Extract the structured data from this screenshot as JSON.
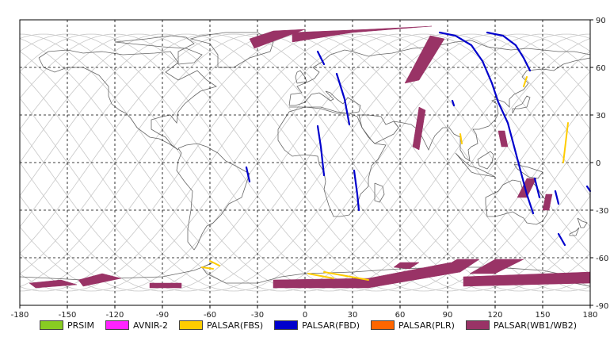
{
  "chart_data": {
    "type": "map",
    "projection": "equirectangular",
    "xlim": [
      -180,
      180
    ],
    "ylim": [
      -90,
      90
    ],
    "x_ticks": [
      -180,
      -150,
      -120,
      -90,
      -60,
      -30,
      0,
      30,
      60,
      90,
      120,
      150,
      180
    ],
    "y_ticks": [
      90,
      60,
      30,
      0,
      -30,
      -60,
      -90
    ],
    "grid": true,
    "legend_position": "bottom",
    "colors": {
      "coastline": "#666666",
      "ground_track": "#c8c8c8",
      "grid": "#000000"
    },
    "legend": [
      {
        "label": "PRSIM",
        "color": "#88cc22"
      },
      {
        "label": "AVNIR-2",
        "color": "#ff22ff"
      },
      {
        "label": "PALSAR(FBS)",
        "color": "#ffcc00"
      },
      {
        "label": "PALSAR(FBD)",
        "color": "#0000cc"
      },
      {
        "label": "PALSAR(PLR)",
        "color": "#ff6600"
      },
      {
        "label": "PALSAR(WB1/WB2)",
        "color": "#993366"
      }
    ],
    "series": [
      {
        "name": "PALSAR(WB1/WB2)",
        "color": "#993366",
        "swaths": [
          [
            [
              -143,
              -74
            ],
            [
              -128,
              -70
            ],
            [
              -116,
              -73
            ],
            [
              -140,
              -78
            ]
          ],
          [
            [
              -174,
              -76
            ],
            [
              -154,
              -74
            ],
            [
              -144,
              -77
            ],
            [
              -170,
              -79
            ]
          ],
          [
            [
              -98,
              -76
            ],
            [
              -78,
              -76
            ],
            [
              -78,
              -79
            ],
            [
              -98,
              -79
            ]
          ],
          [
            [
              -35,
              78
            ],
            [
              -20,
              83
            ],
            [
              0,
              84
            ],
            [
              -32,
              72
            ]
          ],
          [
            [
              -8,
              82
            ],
            [
              40,
              84
            ],
            [
              80,
              86
            ],
            [
              30,
              82
            ],
            [
              -8,
              76
            ]
          ],
          [
            [
              79,
              80
            ],
            [
              88,
              78
            ],
            [
              72,
              52
            ],
            [
              63,
              50
            ]
          ],
          [
            [
              76,
              33
            ],
            [
              72,
              35
            ],
            [
              68,
              10
            ],
            [
              72,
              8
            ]
          ],
          [
            [
              60,
              -63
            ],
            [
              72,
              -63
            ],
            [
              66,
              -67
            ],
            [
              56,
              -66
            ]
          ],
          [
            [
              96,
              -61
            ],
            [
              110,
              -61
            ],
            [
              98,
              -69
            ],
            [
              82,
              -69
            ]
          ],
          [
            [
              120,
              -61
            ],
            [
              138,
              -61
            ],
            [
              120,
              -70
            ],
            [
              104,
              -70
            ]
          ],
          [
            [
              -20,
              -74
            ],
            [
              40,
              -73
            ],
            [
              92,
              -63
            ],
            [
              98,
              -69
            ],
            [
              40,
              -79
            ],
            [
              -20,
              -79
            ]
          ],
          [
            [
              100,
              -72
            ],
            [
              180,
              -69
            ],
            [
              180,
              -76
            ],
            [
              100,
              -78
            ]
          ],
          [
            [
              122,
              20
            ],
            [
              126,
              20
            ],
            [
              128,
              10
            ],
            [
              124,
              10
            ]
          ],
          [
            [
              140,
              -10
            ],
            [
              146,
              -10
            ],
            [
              140,
              -22
            ],
            [
              134,
              -22
            ]
          ],
          [
            [
              152,
              -20
            ],
            [
              156,
              -20
            ],
            [
              154,
              -30
            ],
            [
              150,
              -30
            ]
          ]
        ]
      },
      {
        "name": "PALSAR(FBD)",
        "color": "#0000cc",
        "tracks": [
          [
            [
              85,
              82
            ],
            [
              95,
              80
            ],
            [
              105,
              74
            ],
            [
              112,
              64
            ],
            [
              118,
              50
            ],
            [
              122,
              38
            ],
            [
              128,
              25
            ],
            [
              132,
              10
            ],
            [
              136,
              -5
            ],
            [
              140,
              -20
            ],
            [
              144,
              -32
            ]
          ],
          [
            [
              115,
              82
            ],
            [
              125,
              80
            ],
            [
              133,
              74
            ],
            [
              138,
              66
            ],
            [
              142,
              58
            ]
          ],
          [
            [
              20,
              56
            ],
            [
              25,
              40
            ],
            [
              28,
              24
            ]
          ],
          [
            [
              8,
              23
            ],
            [
              10,
              10
            ],
            [
              12,
              -8
            ]
          ],
          [
            [
              31,
              -5
            ],
            [
              33,
              -20
            ],
            [
              34,
              -30
            ]
          ],
          [
            [
              -37,
              -3
            ],
            [
              -35,
              -12
            ]
          ],
          [
            [
              8,
              70
            ],
            [
              12,
              62
            ]
          ],
          [
            [
              145,
              -10
            ],
            [
              148,
              -22
            ]
          ],
          [
            [
              158,
              -18
            ],
            [
              160,
              -26
            ]
          ],
          [
            [
              160,
              -45
            ],
            [
              164,
              -52
            ]
          ],
          [
            [
              178,
              -15
            ],
            [
              180,
              -18
            ]
          ],
          [
            [
              93,
              39
            ],
            [
              94,
              36
            ]
          ]
        ]
      },
      {
        "name": "PALSAR(FBS)",
        "color": "#ffcc00",
        "tracks": [
          [
            [
              -60,
              -62
            ],
            [
              -54,
              -65
            ]
          ],
          [
            [
              -65,
              -66
            ],
            [
              -58,
              -67
            ]
          ],
          [
            [
              2,
              -70
            ],
            [
              18,
              -73
            ]
          ],
          [
            [
              12,
              -69
            ],
            [
              40,
              -74
            ]
          ],
          [
            [
              166,
              25
            ],
            [
              163,
              0
            ]
          ],
          [
            [
              140,
              54
            ],
            [
              138,
              48
            ]
          ],
          [
            [
              98,
              18
            ],
            [
              99,
              12
            ]
          ]
        ]
      }
    ]
  }
}
